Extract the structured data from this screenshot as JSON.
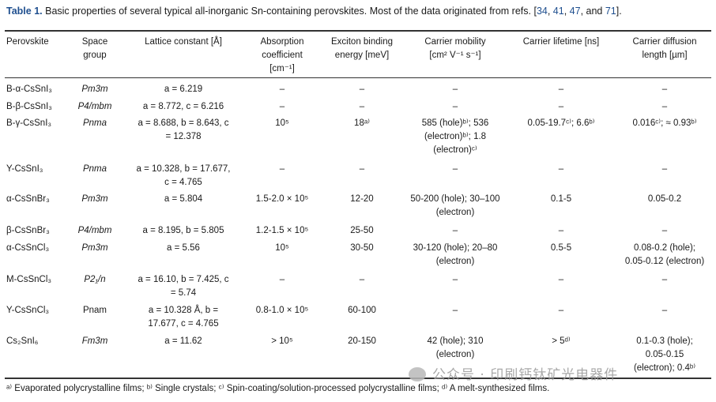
{
  "caption": {
    "label": "Table 1.",
    "text": "Basic properties of several typical all-inorganic Sn-containing perovskites. Most of the data originated from refs. [",
    "refs": [
      "34",
      "41",
      "47",
      "71"
    ],
    "sep1": ", ",
    "sep3": ", and ",
    "end": "]."
  },
  "headers": {
    "perovskite": "Perovskite",
    "space_group": [
      "Space",
      "group"
    ],
    "lattice": "Lattice constant [Å]",
    "absorption": [
      "Absorption",
      "coefficient",
      "[cm⁻¹]"
    ],
    "exciton": [
      "Exciton binding",
      "energy [meV]"
    ],
    "mobility": [
      "Carrier mobility",
      "[cm² V⁻¹ s⁻¹]"
    ],
    "lifetime": "Carrier lifetime [ns]",
    "diffusion": [
      "Carrier diffusion",
      "length [µm]"
    ]
  },
  "rows": [
    {
      "perovskite": "B-α-CsSnI₃",
      "space_group": "Pm3m",
      "lattice": [
        "a = 6.219"
      ],
      "absorption": [
        "–"
      ],
      "exciton": [
        "–"
      ],
      "mobility": [
        "–"
      ],
      "lifetime": [
        "–"
      ],
      "diffusion": [
        "–"
      ]
    },
    {
      "perovskite": "B-β-CsSnI₃",
      "space_group": "P4/mbm",
      "lattice": [
        "a = 8.772, c = 6.216"
      ],
      "absorption": [
        "–"
      ],
      "exciton": [
        "–"
      ],
      "mobility": [
        "–"
      ],
      "lifetime": [
        "–"
      ],
      "diffusion": [
        "–"
      ]
    },
    {
      "perovskite": "B-γ-CsSnI₃",
      "space_group": "Pnma",
      "lattice": [
        "a = 8.688, b = 8.643, c",
        "= 12.378"
      ],
      "absorption": [
        "10⁵"
      ],
      "exciton": [
        "18ᵃ⁾"
      ],
      "mobility": [
        "585 (hole)ᵇ⁾; 536",
        "(electron)ᵇ⁾; 1.8",
        "(electron)ᶜ⁾"
      ],
      "lifetime": [
        "0.05-19.7ᶜ⁾; 6.6ᵇ⁾"
      ],
      "diffusion": [
        "0.016ᶜ⁾; ≈ 0.93ᵇ⁾"
      ]
    },
    {
      "perovskite": "Y-CsSnI₃",
      "space_group": "Pnma",
      "lattice": [
        "a = 10.328, b = 17.677,",
        "c = 4.765"
      ],
      "absorption": [
        "–"
      ],
      "exciton": [
        "–"
      ],
      "mobility": [
        "–"
      ],
      "lifetime": [
        "–"
      ],
      "diffusion": [
        "–"
      ]
    },
    {
      "perovskite": "α-CsSnBr₃",
      "space_group": "Pm3m",
      "lattice": [
        "a = 5.804"
      ],
      "absorption": [
        "1.5-2.0 × 10⁵"
      ],
      "exciton": [
        "12-20"
      ],
      "mobility": [
        "50-200 (hole); 30–100",
        "(electron)"
      ],
      "lifetime": [
        "0.1-5"
      ],
      "diffusion": [
        "0.05-0.2"
      ]
    },
    {
      "perovskite": "β-CsSnBr₃",
      "space_group": "P4/mbm",
      "lattice": [
        "a = 8.195, b = 5.805"
      ],
      "absorption": [
        "1.2-1.5 × 10⁵"
      ],
      "exciton": [
        "25-50"
      ],
      "mobility": [
        "–"
      ],
      "lifetime": [
        "–"
      ],
      "diffusion": [
        "–"
      ]
    },
    {
      "perovskite": "α-CsSnCl₃",
      "space_group": "Pm3m",
      "lattice": [
        "a = 5.56"
      ],
      "absorption": [
        "10⁵"
      ],
      "exciton": [
        "30-50"
      ],
      "mobility": [
        "30-120 (hole); 20–80",
        "(electron)"
      ],
      "lifetime": [
        "0.5-5"
      ],
      "diffusion": [
        "0.08-0.2 (hole);",
        "0.05-0.12 (electron)"
      ]
    },
    {
      "perovskite": "M-CsSnCl₃",
      "space_group": "P2₁/n",
      "lattice": [
        "a = 16.10, b = 7.425, c",
        "= 5.74"
      ],
      "absorption": [
        "–"
      ],
      "exciton": [
        "–"
      ],
      "mobility": [
        "–"
      ],
      "lifetime": [
        "–"
      ],
      "diffusion": [
        "–"
      ]
    },
    {
      "perovskite": "Y-CsSnCl₃",
      "space_group": "Pnam",
      "lattice": [
        "a = 10.328 Å, b =",
        "17.677, c = 4.765"
      ],
      "absorption": [
        "0.8-1.0 × 10⁵"
      ],
      "exciton": [
        "60-100"
      ],
      "mobility": [
        "–"
      ],
      "lifetime": [
        "–"
      ],
      "diffusion": [
        "–"
      ]
    },
    {
      "perovskite": "Cs₂SnI₆",
      "space_group": "Fm3m",
      "lattice": [
        "a = 11.62"
      ],
      "absorption": [
        "> 10⁵"
      ],
      "exciton": [
        "20-150"
      ],
      "mobility": [
        "42 (hole); 310",
        "(electron)"
      ],
      "lifetime": [
        "> 5ᵈ⁾"
      ],
      "diffusion": [
        "0.1-0.3 (hole);",
        "0.05-0.15",
        "(electron); 0.4ᵇ⁾"
      ]
    }
  ],
  "footnote": "ᵃ⁾ Evaporated polycrystalline films; ᵇ⁾ Single crystals; ᶜ⁾ Spin-coating/solution-processed polycrystalline films; ᵈ⁾ A melt-synthesized films.",
  "watermark": "公众号 · 印刷钙钛矿光电器件",
  "colors": {
    "accent": "#1f4f8f",
    "text": "#1a1a1a",
    "watermark": "#9a9a9a"
  }
}
